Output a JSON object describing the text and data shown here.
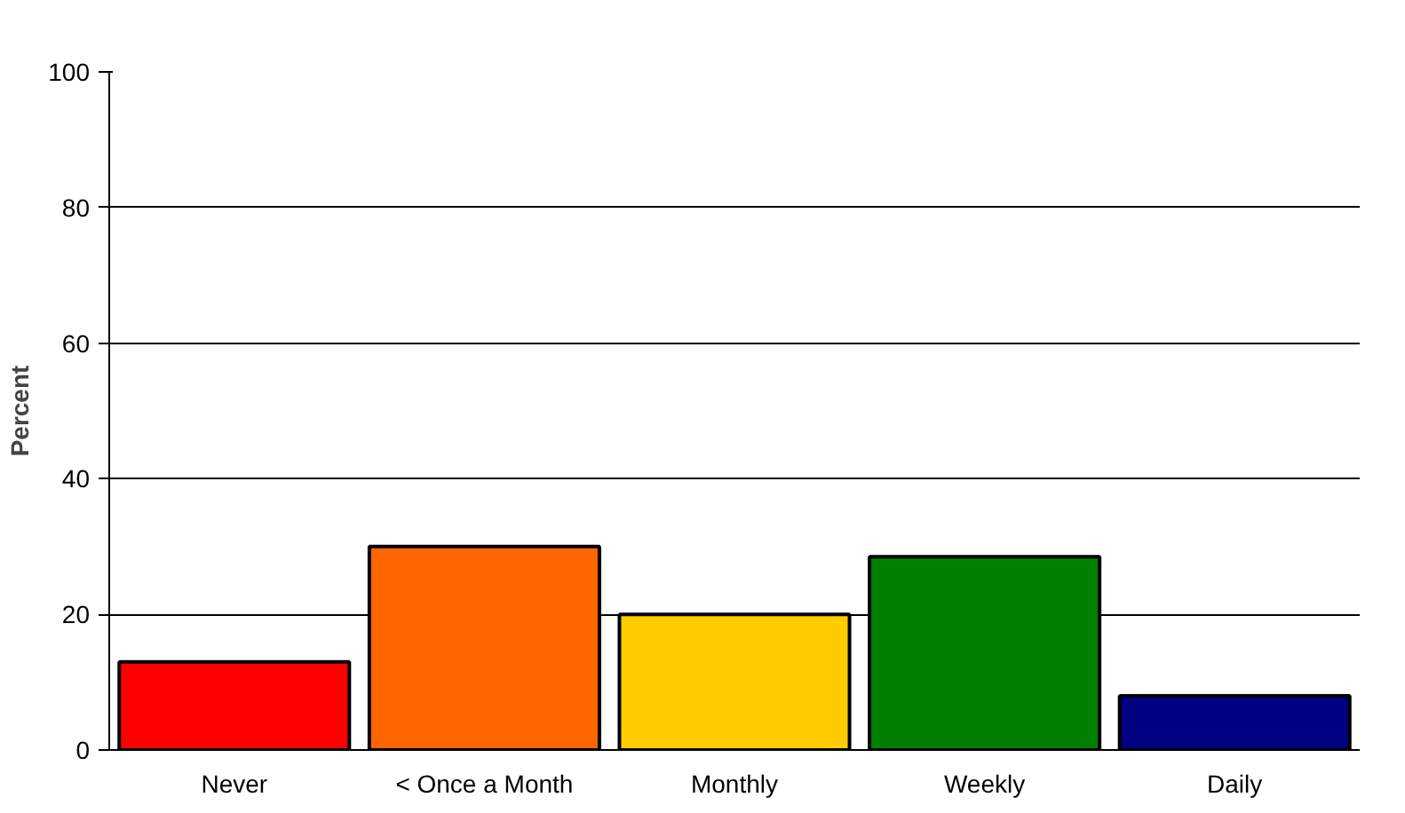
{
  "chart_data": {
    "type": "bar",
    "ylabel": "Percent",
    "categories": [
      "Never",
      "< Once a Month",
      "Monthly",
      "Weekly",
      "Daily"
    ],
    "values": [
      13,
      30,
      20,
      28.5,
      8
    ],
    "colors": [
      "#ff0000",
      "#ff6600",
      "#ffcc00",
      "#008000",
      "#000080"
    ],
    "ylim": [
      0,
      100
    ],
    "yticks": [
      0,
      20,
      40,
      60,
      80,
      100
    ],
    "grid": "y"
  }
}
